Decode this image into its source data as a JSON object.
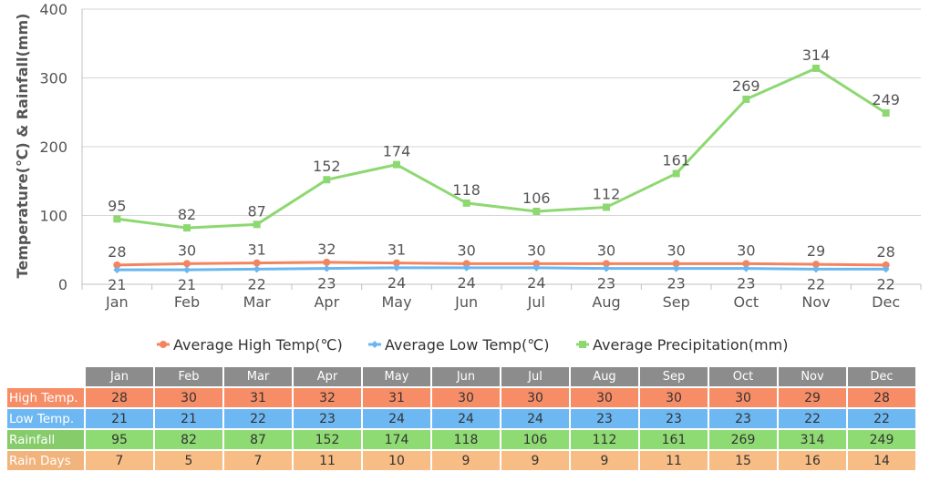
{
  "chart_data": {
    "type": "line",
    "categories": [
      "Jan",
      "Feb",
      "Mar",
      "Apr",
      "May",
      "Jun",
      "Jul",
      "Aug",
      "Sep",
      "Oct",
      "Nov",
      "Dec"
    ],
    "ylabel": "Temperature(℃) & Rainfall(mm)",
    "ylim": [
      0,
      400
    ],
    "yticks": [
      0,
      100,
      200,
      300,
      400
    ],
    "grid": true,
    "legend_position": "bottom",
    "series": [
      {
        "name": "Average High Temp(℃)",
        "color": "#f4845f",
        "values": [
          28,
          30,
          31,
          32,
          31,
          30,
          30,
          30,
          30,
          30,
          29,
          28
        ]
      },
      {
        "name": "Average Low Temp(℃)",
        "color": "#6ab7f0",
        "values": [
          21,
          21,
          22,
          23,
          24,
          24,
          24,
          23,
          23,
          23,
          22,
          22
        ]
      },
      {
        "name": "Average Precipitation(mm)",
        "color": "#8ed872",
        "values": [
          95,
          82,
          87,
          152,
          174,
          118,
          106,
          112,
          161,
          269,
          314,
          249
        ]
      }
    ]
  },
  "table": {
    "months": [
      "Jan",
      "Feb",
      "Mar",
      "Apr",
      "May",
      "Jun",
      "Jul",
      "Aug",
      "Sep",
      "Oct",
      "Nov",
      "Dec"
    ],
    "rows": [
      {
        "key": "high",
        "label": "High Temp.",
        "values": [
          "28",
          "30",
          "31",
          "32",
          "31",
          "30",
          "30",
          "30",
          "30",
          "30",
          "29",
          "28"
        ]
      },
      {
        "key": "low",
        "label": "Low Temp.",
        "values": [
          "21",
          "21",
          "22",
          "23",
          "24",
          "24",
          "24",
          "23",
          "23",
          "23",
          "22",
          "22"
        ]
      },
      {
        "key": "rain",
        "label": "Rainfall",
        "values": [
          "95",
          "82",
          "87",
          "152",
          "174",
          "118",
          "106",
          "112",
          "161",
          "269",
          "314",
          "249"
        ]
      },
      {
        "key": "days",
        "label": "Rain Days",
        "values": [
          "7",
          "5",
          "7",
          "11",
          "10",
          "9",
          "9",
          "9",
          "11",
          "15",
          "16",
          "14"
        ]
      }
    ]
  }
}
